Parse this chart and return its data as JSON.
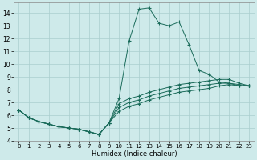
{
  "xlabel": "Humidex (Indice chaleur)",
  "bg_color": "#ceeaea",
  "grid_color": "#aacece",
  "line_color": "#1a6b5a",
  "xlim": [
    -0.5,
    23.5
  ],
  "ylim": [
    4,
    14.8
  ],
  "xticks": [
    0,
    1,
    2,
    3,
    4,
    5,
    6,
    7,
    8,
    9,
    10,
    11,
    12,
    13,
    14,
    15,
    16,
    17,
    18,
    19,
    20,
    21,
    22,
    23
  ],
  "yticks": [
    4,
    5,
    6,
    7,
    8,
    9,
    10,
    11,
    12,
    13,
    14
  ],
  "line1_x": [
    0,
    1,
    2,
    3,
    4,
    5,
    6,
    7,
    8,
    9,
    10,
    11,
    12,
    13,
    14,
    15,
    16,
    17,
    18,
    19,
    20,
    21,
    22,
    23
  ],
  "line1_y": [
    6.4,
    5.8,
    5.5,
    5.3,
    5.1,
    5.0,
    4.9,
    4.7,
    4.5,
    5.4,
    7.3,
    11.8,
    14.3,
    14.4,
    13.2,
    13.0,
    13.3,
    11.5,
    9.5,
    9.2,
    8.6,
    8.5,
    8.3,
    8.3
  ],
  "line2_x": [
    0,
    1,
    2,
    3,
    4,
    5,
    6,
    7,
    8,
    9,
    10,
    11,
    12,
    13,
    14,
    15,
    16,
    17,
    18,
    19,
    20,
    21,
    22,
    23
  ],
  "line2_y": [
    6.4,
    5.8,
    5.5,
    5.3,
    5.1,
    5.0,
    4.9,
    4.7,
    4.5,
    5.4,
    6.3,
    6.7,
    6.9,
    7.2,
    7.4,
    7.6,
    7.8,
    7.9,
    8.0,
    8.1,
    8.3,
    8.4,
    8.3,
    8.3
  ],
  "line3_x": [
    0,
    1,
    2,
    3,
    4,
    5,
    6,
    7,
    8,
    9,
    10,
    11,
    12,
    13,
    14,
    15,
    16,
    17,
    18,
    19,
    20,
    21,
    22,
    23
  ],
  "line3_y": [
    6.4,
    5.8,
    5.5,
    5.3,
    5.1,
    5.0,
    4.9,
    4.7,
    4.5,
    5.4,
    6.6,
    7.0,
    7.2,
    7.5,
    7.7,
    7.9,
    8.1,
    8.2,
    8.3,
    8.4,
    8.5,
    8.5,
    8.4,
    8.3
  ],
  "line4_x": [
    0,
    1,
    2,
    3,
    4,
    5,
    6,
    7,
    8,
    9,
    10,
    11,
    12,
    13,
    14,
    15,
    16,
    17,
    18,
    19,
    20,
    21,
    22,
    23
  ],
  "line4_y": [
    6.4,
    5.8,
    5.5,
    5.3,
    5.1,
    5.0,
    4.9,
    4.7,
    4.5,
    5.4,
    6.9,
    7.3,
    7.5,
    7.8,
    8.0,
    8.2,
    8.4,
    8.5,
    8.6,
    8.7,
    8.8,
    8.8,
    8.5,
    8.3
  ],
  "xlabel_fontsize": 6.0,
  "tick_fontsize_x": 5.0,
  "tick_fontsize_y": 5.5
}
